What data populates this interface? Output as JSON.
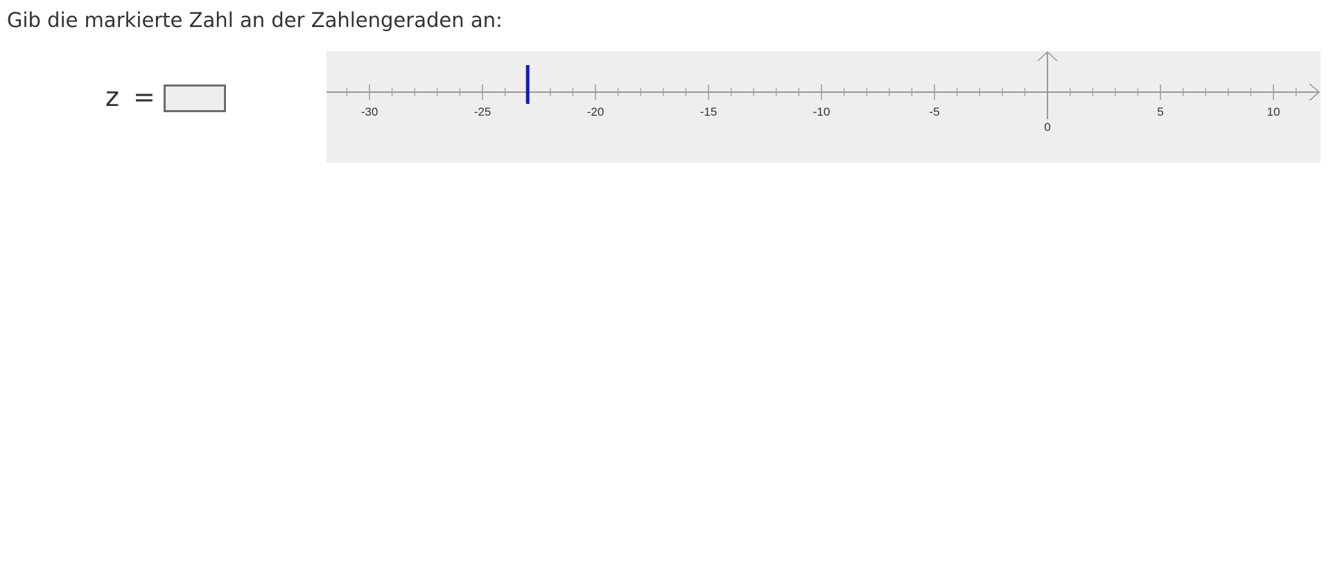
{
  "question": {
    "text": "Gib die markierte Zahl an der Zahlengeraden an:"
  },
  "answer": {
    "variable": "z",
    "equals": "=",
    "value": ""
  },
  "number_line": {
    "min": -32,
    "max": 11.5,
    "major_step": 5,
    "minor_step": 1,
    "labels": [
      "-30",
      "-25",
      "-20",
      "-15",
      "-10",
      "-5",
      "0",
      "5",
      "10"
    ],
    "label_values": [
      -30,
      -25,
      -20,
      -15,
      -10,
      -5,
      0,
      5,
      10
    ],
    "marked_value": -23,
    "axis_color": "#999999",
    "marker_color": "#1a1ab8"
  }
}
